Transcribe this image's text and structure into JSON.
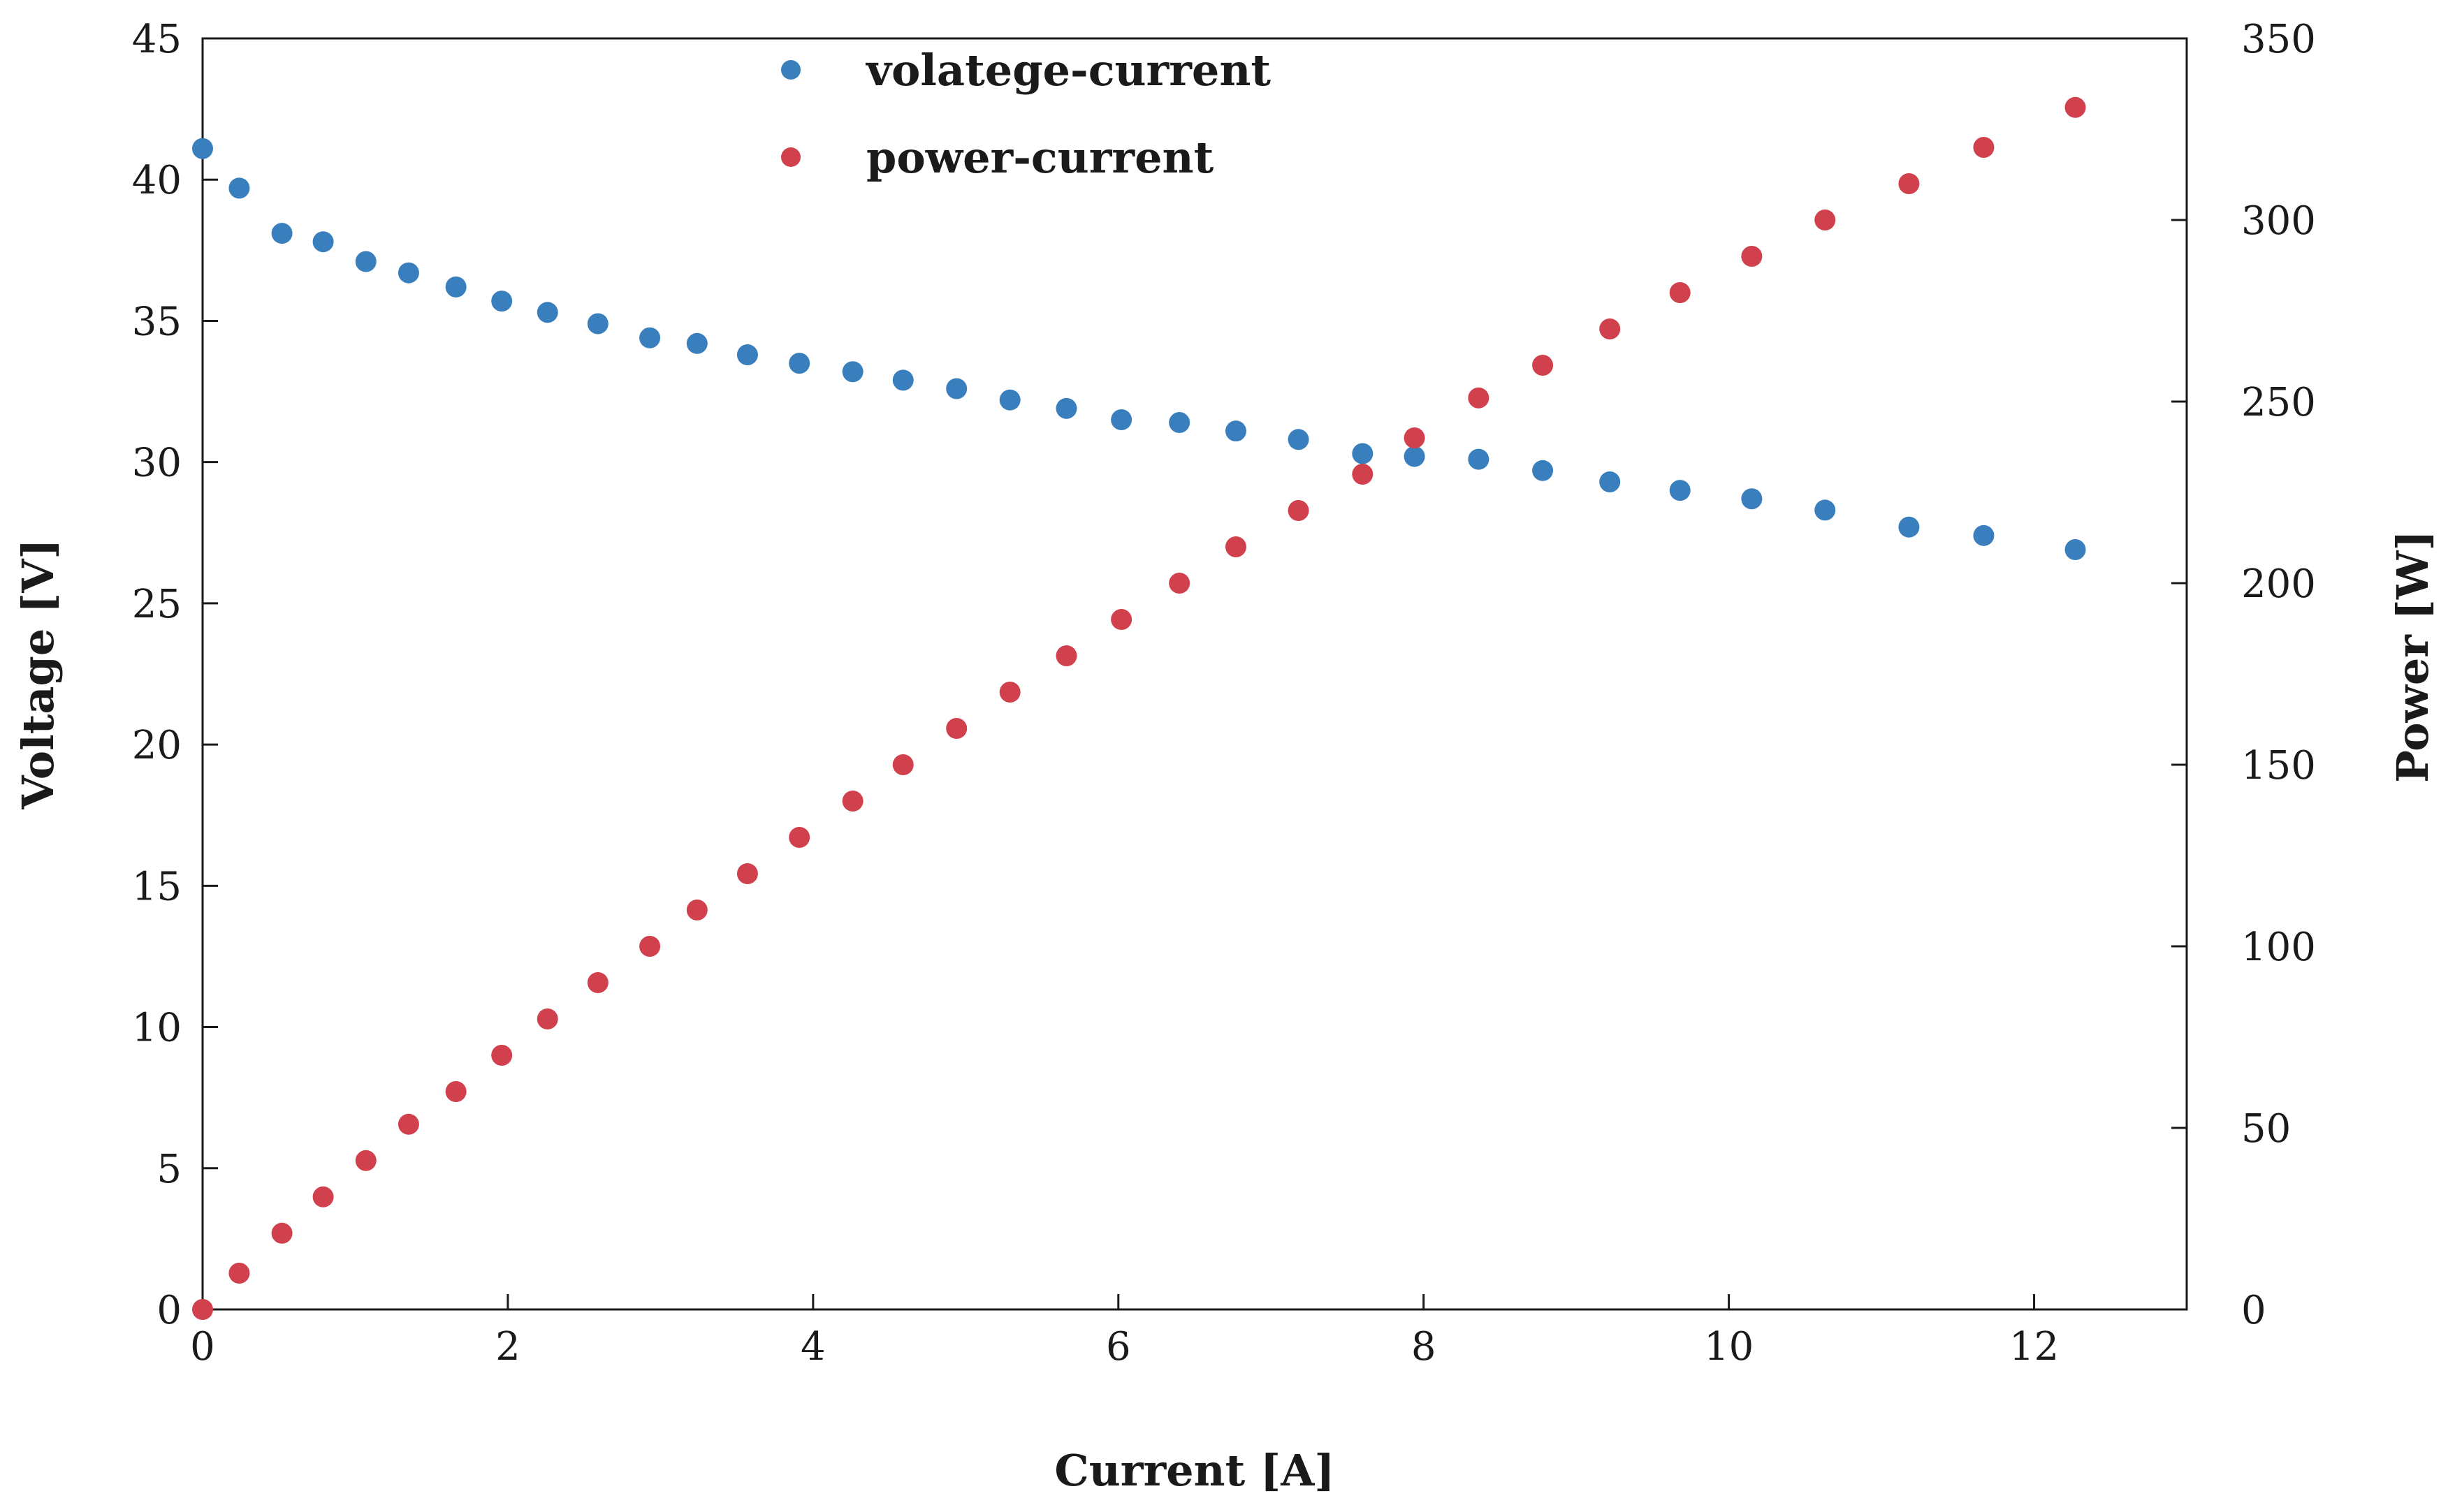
{
  "chart_data": {
    "type": "scatter",
    "title": "",
    "xlabel": "Current [A]",
    "ylabel": "Voltage [V]",
    "y2label": "Power [W]",
    "xlim": [
      0,
      13
    ],
    "ylim": [
      0,
      45
    ],
    "y2lim": [
      0,
      350
    ],
    "x_ticks": [
      0,
      2,
      4,
      6,
      8,
      10,
      12
    ],
    "y_ticks": [
      0,
      5,
      10,
      15,
      20,
      25,
      30,
      35,
      40,
      45
    ],
    "y2_ticks": [
      0,
      50,
      100,
      150,
      200,
      250,
      300,
      350
    ],
    "grid": false,
    "legend_position": "top-center",
    "colors": {
      "voltage": "#3a7fbd",
      "power": "#d1414d",
      "axis": "#1a1a1a"
    },
    "series": [
      {
        "name": "volatege-current",
        "axis": "left",
        "x": [
          0,
          0.24,
          0.52,
          0.79,
          1.07,
          1.35,
          1.66,
          1.96,
          2.26,
          2.59,
          2.93,
          3.24,
          3.57,
          3.91,
          4.26,
          4.59,
          4.94,
          5.29,
          5.66,
          6.02,
          6.4,
          6.77,
          7.18,
          7.6,
          7.94,
          8.36,
          8.78,
          9.22,
          9.68,
          10.15,
          10.63,
          11.18,
          11.67,
          12.27
        ],
        "y": [
          41.1,
          39.7,
          38.1,
          37.8,
          37.1,
          36.7,
          36.2,
          35.7,
          35.3,
          34.9,
          34.4,
          34.2,
          33.8,
          33.5,
          33.2,
          32.9,
          32.6,
          32.2,
          31.9,
          31.5,
          31.4,
          31.1,
          30.8,
          30.3,
          30.2,
          30.1,
          29.7,
          29.3,
          29.0,
          28.7,
          28.3,
          27.7,
          27.4,
          26.9
        ]
      },
      {
        "name": "power-current",
        "axis": "right",
        "x": [
          0,
          0.24,
          0.52,
          0.79,
          1.07,
          1.35,
          1.66,
          1.96,
          2.26,
          2.59,
          2.93,
          3.24,
          3.57,
          3.91,
          4.26,
          4.59,
          4.94,
          5.29,
          5.66,
          6.02,
          6.4,
          6.77,
          7.18,
          7.6,
          7.94,
          8.36,
          8.78,
          9.22,
          9.68,
          10.15,
          10.63,
          11.18,
          11.67,
          12.27
        ],
        "y": [
          0,
          10,
          21,
          31,
          41,
          51,
          60,
          70,
          80,
          90,
          100,
          110,
          120,
          130,
          140,
          150,
          160,
          170,
          180,
          190,
          200,
          210,
          220,
          230,
          240,
          251,
          260,
          270,
          280,
          290,
          300,
          310,
          320,
          331
        ]
      }
    ]
  }
}
